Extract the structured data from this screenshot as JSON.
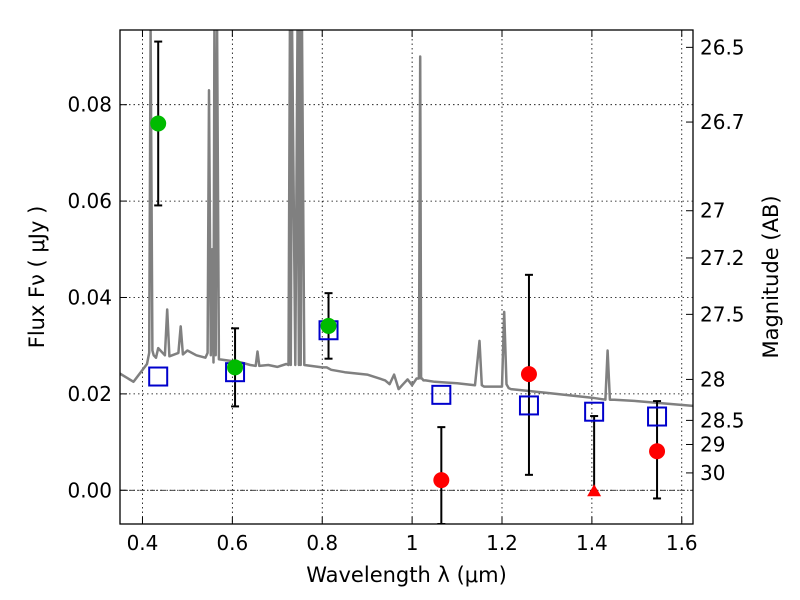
{
  "chart_data": {
    "type": "scatter",
    "title": "",
    "xlabel": "Wavelength  λ (μm)",
    "ylabel": "Flux  Fν  ( μJy )",
    "ylabel_right": "Magnitude (AB)",
    "xlim": [
      0.35,
      1.625
    ],
    "ylim": [
      -0.007,
      0.0955
    ],
    "grid": true,
    "x_ticks": [
      0.4,
      0.6,
      0.8,
      1.0,
      1.2,
      1.4,
      1.6
    ],
    "x_tick_labels": [
      "0.4",
      "0.6",
      "0.8",
      "1",
      "1.2",
      "1.4",
      "1.6"
    ],
    "y_ticks": [
      0.0,
      0.02,
      0.04,
      0.06,
      0.08
    ],
    "y_tick_labels": [
      "0.00",
      "0.02",
      "0.04",
      "0.06",
      "0.08"
    ],
    "right_ticks": [
      {
        "label": "26.5",
        "flux": 0.0919
      },
      {
        "label": "26.7",
        "flux": 0.0764
      },
      {
        "label": "27",
        "flux": 0.058
      },
      {
        "label": "27.2",
        "flux": 0.0482
      },
      {
        "label": "27.5",
        "flux": 0.0365
      },
      {
        "label": "28",
        "flux": 0.023
      },
      {
        "label": "28.5",
        "flux": 0.0145
      },
      {
        "label": "29",
        "flux": 0.0095
      },
      {
        "label": "30",
        "flux": 0.0036
      }
    ],
    "series": [
      {
        "name": "SED model spectrum",
        "kind": "line",
        "color": "#808080",
        "x": [
          0.35,
          0.38,
          0.41,
          0.415,
          0.418,
          0.422,
          0.425,
          0.43,
          0.435,
          0.44,
          0.45,
          0.455,
          0.46,
          0.48,
          0.485,
          0.49,
          0.5,
          0.52,
          0.54,
          0.545,
          0.548,
          0.552,
          0.555,
          0.558,
          0.56,
          0.563,
          0.566,
          0.57,
          0.6,
          0.62,
          0.64,
          0.652,
          0.656,
          0.66,
          0.68,
          0.7,
          0.72,
          0.725,
          0.728,
          0.73,
          0.733,
          0.74,
          0.745,
          0.748,
          0.75,
          0.752,
          0.755,
          0.76,
          0.8,
          0.81,
          0.82,
          0.85,
          0.9,
          0.94,
          0.95,
          0.96,
          0.97,
          0.98,
          0.99,
          1.0,
          1.01,
          1.015,
          1.018,
          1.02,
          1.022,
          1.025,
          1.03,
          1.05,
          1.1,
          1.14,
          1.15,
          1.155,
          1.16,
          1.17,
          1.19,
          1.2,
          1.205,
          1.21,
          1.215,
          1.22,
          1.3,
          1.4,
          1.43,
          1.435,
          1.44,
          1.45,
          1.5,
          1.625
        ],
        "y": [
          0.0242,
          0.0225,
          0.0262,
          0.0285,
          0.0955,
          0.029,
          0.028,
          0.0275,
          0.0295,
          0.029,
          0.028,
          0.0375,
          0.0278,
          0.0285,
          0.034,
          0.0282,
          0.029,
          0.028,
          0.0275,
          0.0285,
          0.083,
          0.028,
          0.05,
          0.0265,
          0.0955,
          0.028,
          0.0955,
          0.0272,
          0.0268,
          0.0265,
          0.026,
          0.0258,
          0.0288,
          0.0258,
          0.026,
          0.0256,
          0.0262,
          0.026,
          0.0955,
          0.026,
          0.0955,
          0.026,
          0.0955,
          0.026,
          0.0955,
          0.026,
          0.0955,
          0.026,
          0.0255,
          0.0255,
          0.025,
          0.0245,
          0.024,
          0.0228,
          0.022,
          0.024,
          0.021,
          0.022,
          0.023,
          0.0218,
          0.0232,
          0.0232,
          0.09,
          0.0232,
          0.0232,
          0.0228,
          0.0228,
          0.0225,
          0.0222,
          0.0218,
          0.031,
          0.0218,
          0.0215,
          0.0215,
          0.0215,
          0.0215,
          0.037,
          0.022,
          0.0212,
          0.021,
          0.0202,
          0.0192,
          0.0188,
          0.029,
          0.0188,
          0.0188,
          0.0185,
          0.0175
        ]
      },
      {
        "name": "Model band fluxes",
        "kind": "open-square",
        "color": "#0000cc",
        "x": [
          0.435,
          0.606,
          0.814,
          1.065,
          1.26,
          1.405,
          1.545
        ],
        "y": [
          0.0236,
          0.0245,
          0.0332,
          0.0198,
          0.0176,
          0.0163,
          0.0153
        ]
      },
      {
        "name": "Detections",
        "kind": "filled-circle",
        "color": "#00bb00",
        "x": [
          0.435,
          0.606,
          0.814
        ],
        "y": [
          0.0761,
          0.0255,
          0.0341
        ],
        "err_low": [
          0.0591,
          0.0174,
          0.0273
        ],
        "err_high": [
          0.0931,
          0.0336,
          0.0409
        ]
      },
      {
        "name": "Low-significance measurements",
        "kind": "filled-circle",
        "color": "#ff0000",
        "x": [
          1.065,
          1.26,
          1.545
        ],
        "y": [
          0.0021,
          0.0241,
          0.0081
        ],
        "err_low": [
          -0.007,
          0.0032,
          -0.0017
        ],
        "err_high": [
          0.0131,
          0.0447,
          0.0185
        ]
      },
      {
        "name": "Upper limit",
        "kind": "filled-triangle",
        "color": "#ff0000",
        "x": [
          1.405
        ],
        "y": [
          -0.0002
        ],
        "err_low": [
          -0.0002
        ],
        "err_high": [
          0.0154
        ]
      }
    ]
  }
}
